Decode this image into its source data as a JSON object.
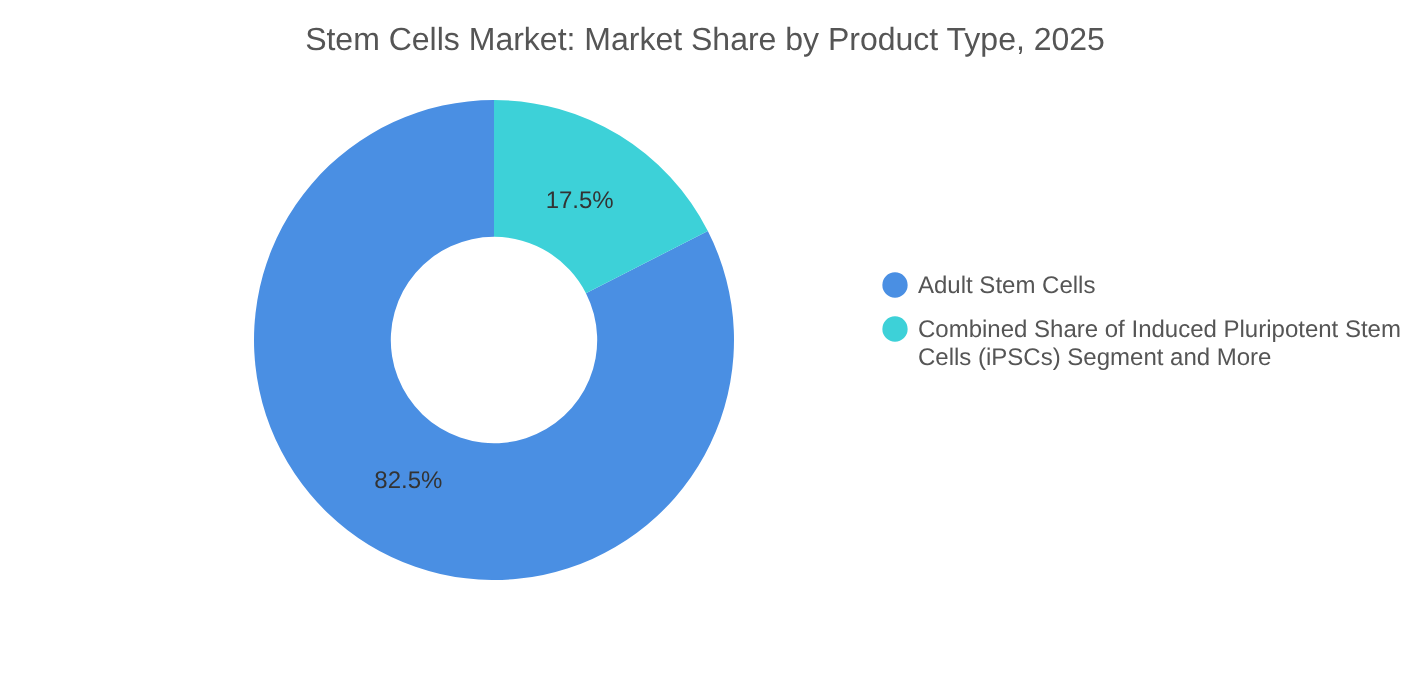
{
  "chart_data": {
    "type": "donut",
    "title": "Stem Cells Market: Market Share by Product Type, 2025",
    "categories": [
      "Adult Stem Cells",
      "Combined Share of Induced Pluripotent Stem Cells (iPSCs) Segment and More"
    ],
    "values": [
      82.5,
      17.5
    ],
    "colors": [
      "#4a8fe3",
      "#3dd1d8"
    ],
    "value_labels": [
      "82.5%",
      "17.5%"
    ],
    "legend": "right"
  }
}
